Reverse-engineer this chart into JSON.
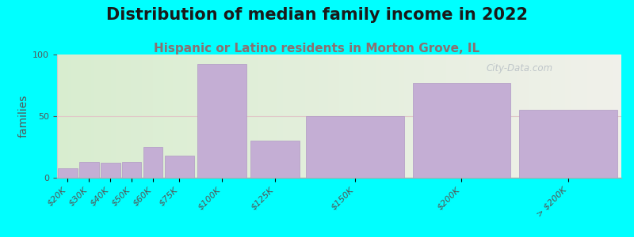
{
  "title": "Distribution of median family income in 2022",
  "subtitle": "Hispanic or Latino residents in Morton Grove, IL",
  "ylabel": "families",
  "background_color": "#00FFFF",
  "plot_bg_gradient_left": "#d8edcf",
  "plot_bg_gradient_right": "#f0f0ea",
  "bar_color": "#c4aed4",
  "bar_edge_color": "#b099c4",
  "watermark": "City-Data.com",
  "categories": [
    "$20K",
    "$30K",
    "$40K",
    "$50K",
    "$60K",
    "$75K",
    "$100K",
    "$125K",
    "$150K",
    "$200K",
    "> $200K"
  ],
  "values": [
    8,
    13,
    12,
    13,
    25,
    18,
    92,
    30,
    50,
    77,
    55
  ],
  "bin_widths": [
    1,
    1,
    1,
    1,
    1,
    1.5,
    2.5,
    2.5,
    5,
    5,
    5
  ],
  "ylim": [
    0,
    100
  ],
  "yticks": [
    0,
    50,
    100
  ],
  "title_fontsize": 15,
  "subtitle_fontsize": 11,
  "ylabel_fontsize": 10,
  "tick_fontsize": 8,
  "subtitle_color": "#8b7070",
  "title_color": "#1a1a1a",
  "gridline_color": "#e0c8c8",
  "watermark_color": "#b0b8c0"
}
